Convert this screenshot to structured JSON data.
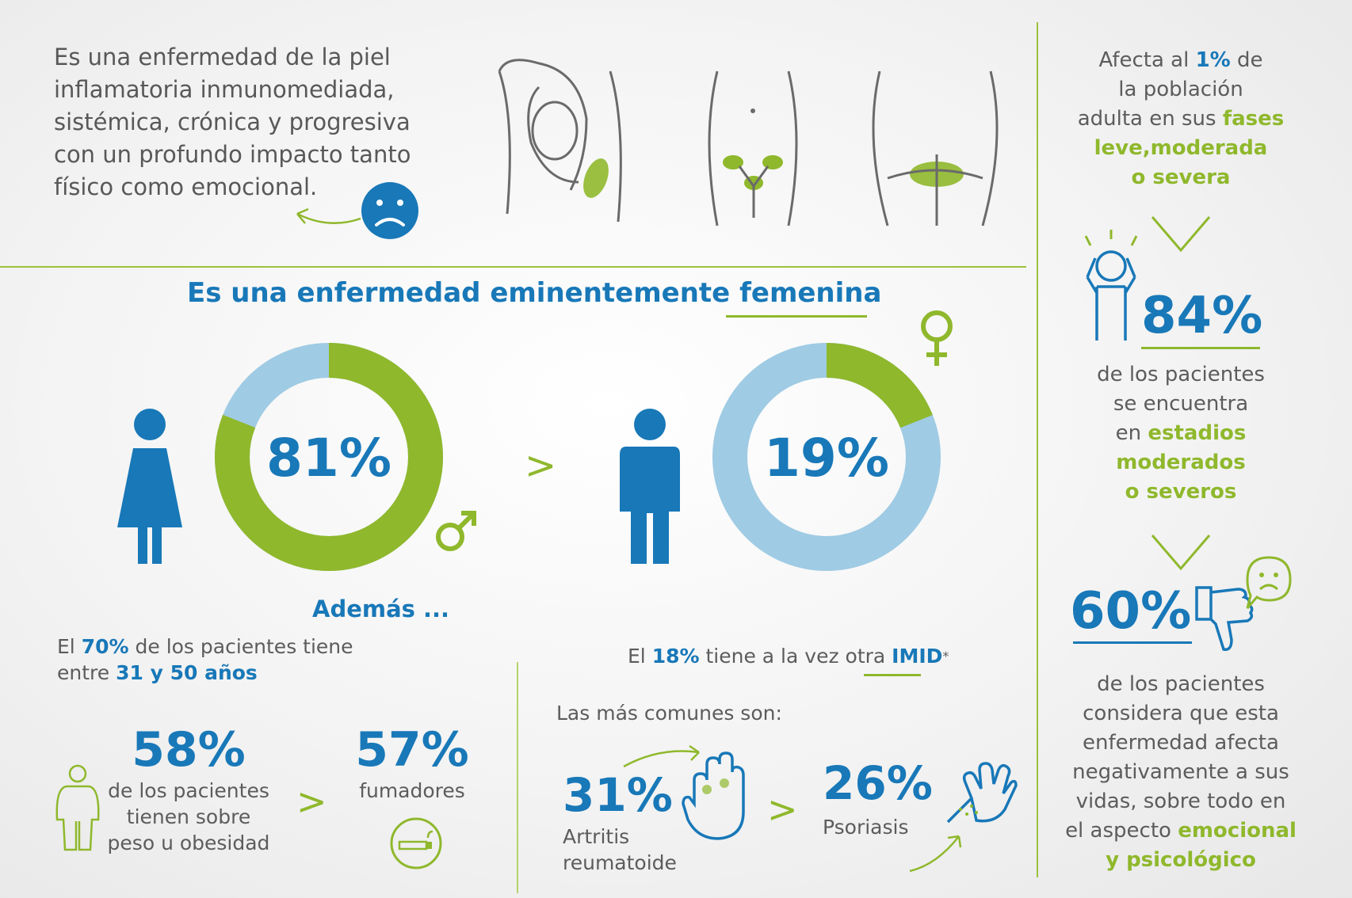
{
  "intro": {
    "lines": [
      "Es una enfermedad de la piel",
      "inflamatoria inmunomediada,",
      "sistémica, crónica y progresiva",
      "con un profundo impacto tanto",
      "físico como emocional."
    ]
  },
  "heading": {
    "prefix": "Es una enfermedad eminentemente ",
    "highlight": "femenina"
  },
  "donuts": {
    "women": {
      "label": "81%",
      "value": 81
    },
    "men": {
      "label": "19%",
      "value": 19
    },
    "comparison": ">"
  },
  "ademas": "Además ...",
  "age": {
    "p1": "El ",
    "pct": "70%",
    "p2": " de los pacientes tiene",
    "p3": "entre ",
    "range": "31 y 50 años"
  },
  "overweight": {
    "pct": "58%",
    "lines": [
      "de los pacientes",
      "tienen sobre",
      "peso u obesidad"
    ]
  },
  "overweight_cmp": ">",
  "smokers": {
    "pct": "57%",
    "label": "fumadores"
  },
  "imid": {
    "p1": "El ",
    "pct": "18%",
    "p2": " tiene a la vez otra ",
    "name": "IMID",
    "star": "*"
  },
  "common": "Las más comunes son:",
  "arthritis": {
    "pct": "31%",
    "lines": [
      "Artritis",
      "reumatoide"
    ]
  },
  "arthritis_cmp": ">",
  "psoriasis": {
    "pct": "26%",
    "label": "Psoriasis"
  },
  "right": {
    "affects": {
      "p1": "Afecta al ",
      "pct": "1%",
      "p2": " de",
      "l2": "la población",
      "l3a": "adulta en sus ",
      "l3b": "fases",
      "l4": "leve,moderada",
      "l5": "o severa"
    },
    "stage": {
      "pct": "84%",
      "l1": "de los pacientes",
      "l2": "se encuentra",
      "l3a": "en ",
      "l3b": "estadios",
      "l4": "moderados",
      "l5": "o severos"
    },
    "emotional": {
      "pct": "60%",
      "l1": "de los pacientes",
      "l2": "considera que esta",
      "l3": "enfermedad afecta",
      "l4": "negativamente a sus",
      "l5": "vidas, sobre todo en",
      "l6a": "el aspecto ",
      "l6b": "emocional",
      "l7": "y psicológico"
    }
  },
  "colors": {
    "blue": "#1878b8",
    "green": "#8fb82c",
    "light_blue": "#9fcbe4",
    "gray": "#5a5a5a"
  },
  "icons": [
    "sad-face-icon",
    "armpit-figure-icon",
    "groin-figure-icon",
    "buttocks-figure-icon",
    "female-figure-icon",
    "male-figure-icon",
    "female-symbol-icon",
    "male-symbol-icon",
    "overweight-person-icon",
    "no-smoking-icon",
    "hand-icon",
    "psoriasis-hand-icon",
    "stressed-person-icon",
    "thumbs-down-icon",
    "chevron-down-icon"
  ]
}
